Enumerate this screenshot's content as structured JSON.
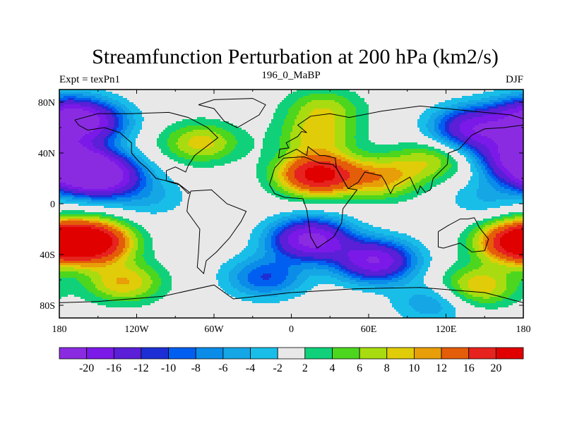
{
  "chart_data": {
    "type": "heatmap",
    "title": "Streamfunction Perturbation at 200 hPa (km2/s)",
    "subtitle_left": "Expt = texPn1",
    "subtitle_center": "196_0_MaBP",
    "subtitle_right": "DJF",
    "projection": "cylindrical-equidistant",
    "coastlines": true,
    "x_axis": {
      "range": [
        -180,
        180
      ],
      "ticks": [
        -180,
        -120,
        -60,
        0,
        60,
        120,
        180
      ],
      "tick_labels": [
        "180",
        "120W",
        "60W",
        "0",
        "60E",
        "120E",
        "180"
      ]
    },
    "y_axis": {
      "range": [
        -90,
        90
      ],
      "ticks": [
        80,
        40,
        0,
        -40,
        -80
      ],
      "tick_labels": [
        "80N",
        "40N",
        "0",
        "40S",
        "80S"
      ]
    },
    "levels": [
      -20,
      -16,
      -12,
      -10,
      -8,
      -6,
      -4,
      -2,
      2,
      4,
      6,
      8,
      10,
      12,
      16,
      20
    ],
    "level_labels": [
      "-20",
      "-16",
      "-12",
      "-10",
      "-8",
      "-6",
      "-4",
      "-2",
      "2",
      "4",
      "6",
      "8",
      "10",
      "12",
      "16",
      "20"
    ],
    "colors": [
      "#8a2be2",
      "#7b19e8",
      "#5a1fd7",
      "#1d2fd4",
      "#005ff0",
      "#0a8ce8",
      "#15a6e6",
      "#19bee8",
      "#e8e8e8",
      "#10d17a",
      "#4dd61e",
      "#a8dc10",
      "#e0cc08",
      "#e89e08",
      "#e45d08",
      "#e6231e",
      "#e00000"
    ],
    "field_centers": [
      {
        "lon": 20,
        "lat": 23,
        "value": 22
      },
      {
        "lon": 70,
        "lat": 20,
        "value": 10
      },
      {
        "lon": 108,
        "lat": 34,
        "value": 7
      },
      {
        "lon": -148,
        "lat": 22,
        "value": -24
      },
      {
        "lon": -172,
        "lat": 30,
        "value": -22
      },
      {
        "lon": -70,
        "lat": 48,
        "value": 9
      },
      {
        "lon": 20,
        "lat": 53,
        "value": 8
      },
      {
        "lon": -158,
        "lat": 64,
        "value": -17
      },
      {
        "lon": -178,
        "lat": 70,
        "value": -12
      },
      {
        "lon": 25,
        "lat": 75,
        "value": 7
      },
      {
        "lon": 140,
        "lat": 60,
        "value": -17
      },
      {
        "lon": 170,
        "lat": 43,
        "value": -12
      },
      {
        "lon": -155,
        "lat": -30,
        "value": 24
      },
      {
        "lon": -130,
        "lat": -62,
        "value": 10
      },
      {
        "lon": 175,
        "lat": -30,
        "value": 21
      },
      {
        "lon": 145,
        "lat": -65,
        "value": 10
      },
      {
        "lon": 15,
        "lat": -28,
        "value": -22
      },
      {
        "lon": 65,
        "lat": -45,
        "value": -20
      },
      {
        "lon": -20,
        "lat": -58,
        "value": -10
      },
      {
        "lon": 110,
        "lat": -78,
        "value": -6
      },
      {
        "lon": -110,
        "lat": 5,
        "value": -4
      },
      {
        "lon": 150,
        "lat": 5,
        "value": -4
      }
    ]
  }
}
